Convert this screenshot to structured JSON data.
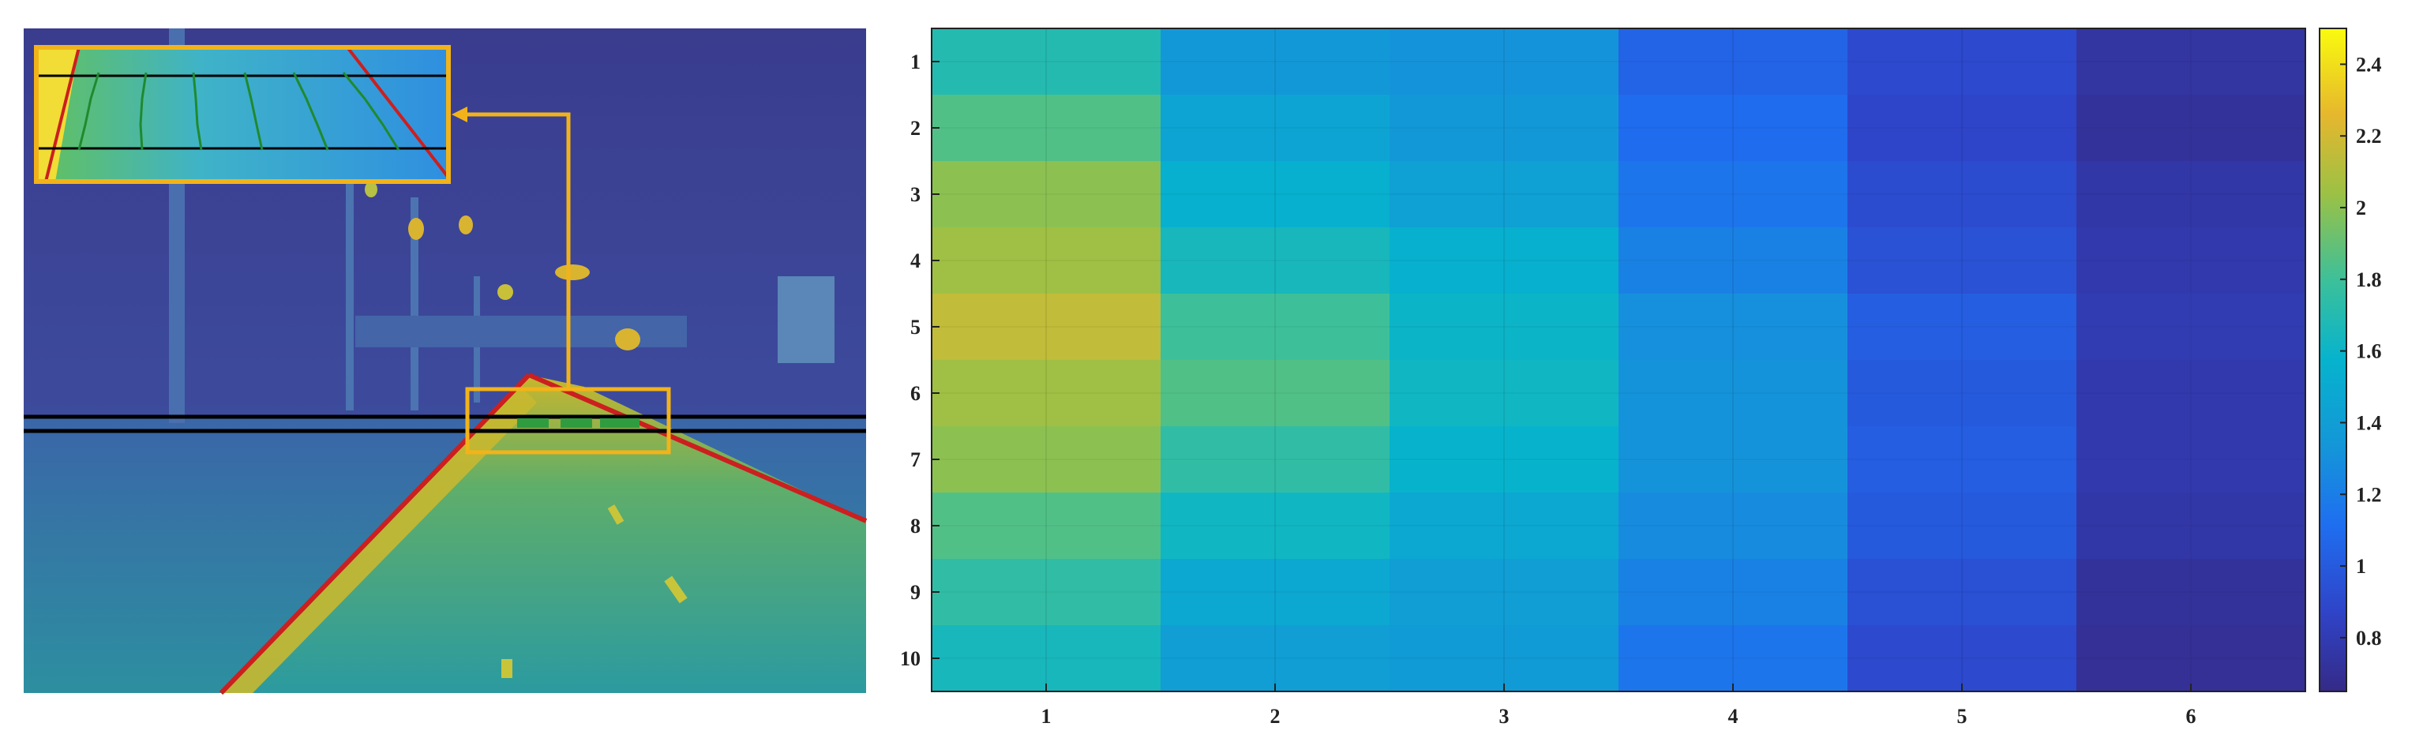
{
  "photo_panel": {
    "description_free": true,
    "colors": {
      "sky": "#3b3f95",
      "road": "#2a8f9a",
      "road_highlight": "#c9b52a",
      "lane_edge": "#cc1f1f",
      "zoom_frame": "#f2b31a",
      "reference_lines": "#000000",
      "markers": "#2f9d3f"
    }
  },
  "chart_data": {
    "type": "heatmap",
    "title": "",
    "xlabel": "",
    "ylabel": "",
    "x": [
      1,
      2,
      3,
      4,
      5,
      6
    ],
    "y": [
      1,
      2,
      3,
      4,
      5,
      6,
      7,
      8,
      9,
      10
    ],
    "values": [
      [
        1.7,
        1.35,
        1.32,
        1.05,
        0.9,
        0.74
      ],
      [
        1.85,
        1.45,
        1.35,
        1.1,
        0.88,
        0.72
      ],
      [
        2.0,
        1.55,
        1.42,
        1.15,
        0.92,
        0.76
      ],
      [
        2.05,
        1.65,
        1.55,
        1.22,
        0.95,
        0.78
      ],
      [
        2.15,
        1.8,
        1.6,
        1.3,
        1.02,
        0.8
      ],
      [
        2.05,
        1.85,
        1.62,
        1.32,
        1.0,
        0.78
      ],
      [
        2.0,
        1.75,
        1.58,
        1.32,
        1.02,
        0.78
      ],
      [
        1.85,
        1.62,
        1.48,
        1.28,
        1.0,
        0.76
      ],
      [
        1.75,
        1.48,
        1.4,
        1.22,
        0.94,
        0.72
      ],
      [
        1.65,
        1.4,
        1.38,
        1.15,
        0.9,
        0.7
      ]
    ],
    "row_bands": [
      [
        1,
        1,
        1.7
      ],
      [
        2,
        2,
        1.85
      ],
      [
        3,
        4,
        2.0
      ],
      [
        5,
        6,
        2.15
      ],
      [
        7,
        7,
        2.0
      ],
      [
        8,
        8,
        1.85
      ],
      [
        9,
        9,
        1.75
      ],
      [
        10,
        10,
        1.65
      ]
    ],
    "colormap": "parula",
    "clim": [
      0.65,
      2.5
    ],
    "colorbar": {
      "ticks": [
        0.8,
        1,
        1.2,
        1.4,
        1.6,
        1.8,
        2,
        2.2,
        2.4
      ],
      "tick_labels": [
        "0.8",
        "1",
        "1.2",
        "1.4",
        "1.6",
        "1.8",
        "2",
        "2.2",
        "2.4"
      ],
      "location": "right"
    },
    "x_tick_labels": [
      "1",
      "2",
      "3",
      "4",
      "5",
      "6"
    ],
    "y_tick_labels": [
      "1",
      "2",
      "3",
      "4",
      "5",
      "6",
      "7",
      "8",
      "9",
      "10"
    ],
    "y_direction": "reverse",
    "grid": true
  }
}
